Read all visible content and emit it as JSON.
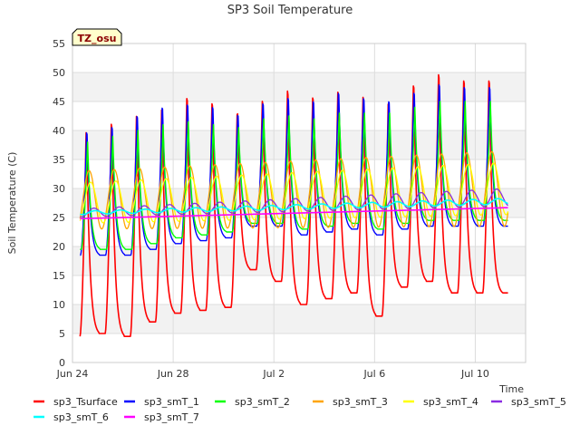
{
  "chart_data": {
    "type": "line",
    "title": "SP3 Soil Temperature",
    "xlabel": "Time",
    "ylabel": "Soil Temperature (C)",
    "badge": "TZ_osu",
    "xlim_days": [
      0,
      18
    ],
    "ylim": [
      0,
      55
    ],
    "y_ticks": [
      0,
      5,
      10,
      15,
      20,
      25,
      30,
      35,
      40,
      45,
      50,
      55
    ],
    "x_ticks": [
      {
        "day": 0,
        "label": "Jun 24"
      },
      {
        "day": 4,
        "label": "Jun 28"
      },
      {
        "day": 8,
        "label": "Jul 2"
      },
      {
        "day": 12,
        "label": "Jul 6"
      },
      {
        "day": 16,
        "label": "Jul 10"
      }
    ],
    "grid": true,
    "legend_position": "bottom",
    "start_day": 0.3,
    "end_day": 17.3,
    "daily_peaks": {
      "sp3_Tsurface": [
        42,
        43.5,
        45,
        46,
        48,
        47,
        45,
        47,
        49,
        48,
        49,
        48,
        47,
        50,
        52,
        51,
        51
      ],
      "sp3_smT_1": [
        41,
        42,
        44,
        45.5,
        46,
        45.5,
        44,
        46,
        47,
        46.5,
        48,
        47,
        46.5,
        48,
        49.5,
        49,
        49
      ],
      "sp3_smT_2": [
        38,
        39,
        40,
        41,
        41.5,
        41,
        40.5,
        42,
        42.5,
        42,
        43,
        43,
        43,
        44,
        45,
        45,
        45
      ]
    },
    "daily_troughs": {
      "sp3_Tsurface": [
        4.5,
        5,
        4.5,
        7,
        8.5,
        9,
        9.5,
        16,
        14,
        10,
        11,
        12,
        8,
        13,
        14,
        12,
        12
      ],
      "sp3_smT_1": [
        18.5,
        18.5,
        18.5,
        19.5,
        20.5,
        21,
        21.5,
        23.5,
        23.5,
        22,
        22.5,
        23,
        22,
        23,
        23.5,
        23.5,
        23.5
      ],
      "sp3_smT_2": [
        19.5,
        19.5,
        19.5,
        20.5,
        21.5,
        22,
        22.5,
        24,
        24,
        23,
        23.5,
        24,
        23,
        24,
        24.5,
        24.5,
        24.5
      ]
    },
    "series": [
      {
        "name": "sp3_Tsurface",
        "color": "#ff0000",
        "style": "diurnal",
        "phase": 0.55,
        "width": 1.6
      },
      {
        "name": "sp3_smT_1",
        "color": "#0000ff",
        "style": "diurnal",
        "phase": 0.57,
        "width": 1.4
      },
      {
        "name": "sp3_smT_2",
        "color": "#00ff00",
        "style": "diurnal",
        "phase": 0.6,
        "width": 1.4
      },
      {
        "name": "sp3_smT_3",
        "color": "#ffa500",
        "style": "sine",
        "phase": 0.66,
        "mean_start": 28,
        "mean_end": 30,
        "amp_start": 5,
        "amp_end": 6.5,
        "width": 1.3
      },
      {
        "name": "sp3_smT_4",
        "color": "#ffff00",
        "style": "sine",
        "phase": 0.72,
        "mean_start": 27.5,
        "mean_end": 30,
        "amp_start": 3.5,
        "amp_end": 4.5,
        "width": 1.3
      },
      {
        "name": "sp3_smT_5",
        "color": "#8a2be2",
        "style": "sine",
        "phase": 0.85,
        "mean_start": 25.8,
        "mean_end": 28.5,
        "amp_start": 0.7,
        "amp_end": 1.5,
        "width": 1.3
      },
      {
        "name": "sp3_smT_6",
        "color": "#00ffff",
        "style": "sine",
        "phase": 0.9,
        "mean_start": 25.8,
        "mean_end": 27.8,
        "amp_start": 0.3,
        "amp_end": 0.5,
        "width": 1.6
      },
      {
        "name": "sp3_smT_7",
        "color": "#ff00ff",
        "style": "linear",
        "mean_start": 24.8,
        "mean_end": 26.7,
        "width": 1.6
      }
    ]
  }
}
